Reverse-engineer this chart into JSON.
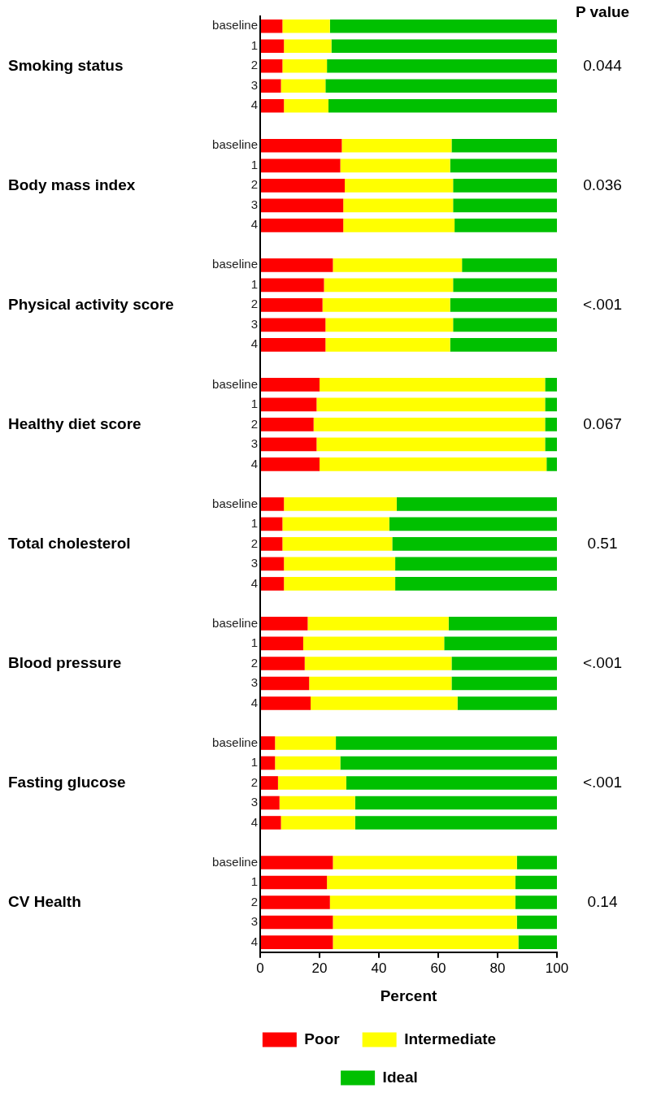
{
  "chart_data": {
    "type": "bar",
    "orientation": "horizontal",
    "stacked": true,
    "categories": [
      "baseline",
      "1",
      "2",
      "3",
      "4",
      null,
      "baseline",
      "1",
      "2",
      "3",
      "4",
      null,
      "baseline",
      "1",
      "2",
      "3",
      "4",
      null,
      "baseline",
      "1",
      "2",
      "3",
      "4",
      null,
      "baseline",
      "1",
      "2",
      "3",
      "4",
      null,
      "baseline",
      "1",
      "2",
      "3",
      "4",
      null,
      "baseline",
      "1",
      "2",
      "3",
      "4",
      null,
      "baseline",
      "1",
      "2",
      "3",
      "4"
    ],
    "series": [
      {
        "name": "Poor",
        "color": "#ff0000",
        "values": [
          7.5,
          8,
          7.5,
          7,
          8,
          null,
          27.5,
          27,
          28.5,
          28,
          28,
          null,
          24.5,
          21.5,
          21,
          22,
          22,
          null,
          20,
          19,
          18,
          19,
          20,
          null,
          8,
          7.5,
          7.5,
          8,
          8,
          null,
          16,
          14.5,
          15,
          16.5,
          17,
          null,
          5,
          5,
          6,
          6.5,
          7,
          null,
          24.5,
          22.5,
          23.5,
          24.5,
          24.5
        ]
      },
      {
        "name": "Intermediate",
        "color": "#ffff00",
        "values": [
          16,
          16,
          15,
          15,
          15,
          null,
          37,
          37,
          36.5,
          37,
          37.5,
          null,
          43.5,
          43.5,
          43,
          43,
          42,
          null,
          76,
          77,
          78,
          77,
          76.5,
          null,
          38,
          36,
          37,
          37.5,
          37.5,
          null,
          47.5,
          47.5,
          49.5,
          48,
          49.5,
          null,
          20.5,
          22,
          23,
          25.5,
          25,
          null,
          62,
          63.5,
          62.5,
          62,
          62.5
        ]
      },
      {
        "name": "Ideal",
        "color": "#00c000",
        "values": [
          76.5,
          76,
          77.5,
          78,
          77,
          null,
          35.5,
          36,
          35,
          35,
          34.5,
          null,
          32,
          35,
          36,
          35,
          36,
          null,
          4,
          4,
          4,
          4,
          3.5,
          null,
          54,
          56.5,
          55.5,
          54.5,
          54.5,
          null,
          36.5,
          38,
          35.5,
          35.5,
          33.5,
          null,
          74.5,
          73,
          71,
          68,
          68,
          null,
          13.5,
          14,
          14,
          13.5,
          13
        ]
      }
    ],
    "xlim": [
      0,
      100
    ],
    "xticks": [
      0,
      20,
      40,
      60,
      80,
      100
    ],
    "xlabel": "Percent",
    "legend": "bottom",
    "grid": false,
    "annotations": [
      "Smoking status",
      "Body mass index",
      "Physical activity score",
      "Healthy diet score",
      "Total cholesterol",
      "Blood pressure",
      "Fasting glucose",
      "CV Health",
      "P value",
      "0.044",
      "0.036",
      "<.001",
      "0.067",
      "0.51",
      "<.001",
      "<.001",
      "0.14"
    ]
  }
}
